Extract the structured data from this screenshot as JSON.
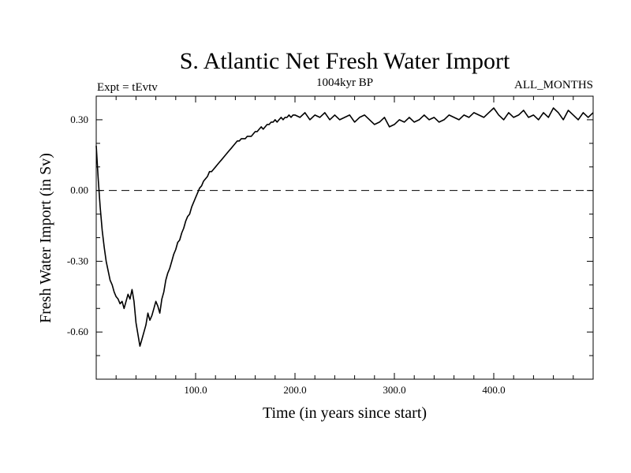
{
  "chart_data": {
    "type": "line",
    "title": "S. Atlantic Net Fresh Water Import",
    "subtitle_left": "Expt = tEvtv",
    "subtitle_center": "1004kyr BP",
    "subtitle_right": "ALL_MONTHS",
    "xlabel": "Time (in years since start)",
    "ylabel": "Fresh Water Import (in Sv)",
    "xlim": [
      0,
      500
    ],
    "ylim": [
      -0.8,
      0.4
    ],
    "x_ticks": [
      100,
      200,
      300,
      400
    ],
    "x_tick_labels": [
      "100.0",
      "200.0",
      "300.0",
      "400.0"
    ],
    "y_ticks": [
      0.3,
      0.0,
      -0.3,
      -0.6
    ],
    "y_tick_labels": [
      "0.30",
      "0.00",
      "-0.30",
      "-0.60"
    ],
    "reference_line": {
      "y": 0.0,
      "style": "dashed"
    },
    "series": [
      {
        "name": "Fresh Water Import",
        "x": [
          0,
          2,
          4,
          6,
          8,
          10,
          12,
          14,
          16,
          18,
          20,
          22,
          24,
          26,
          28,
          30,
          32,
          34,
          36,
          38,
          40,
          42,
          44,
          46,
          48,
          50,
          52,
          54,
          56,
          58,
          60,
          62,
          64,
          66,
          68,
          70,
          72,
          74,
          76,
          78,
          80,
          82,
          84,
          86,
          88,
          90,
          92,
          94,
          96,
          98,
          100,
          102,
          104,
          106,
          108,
          110,
          112,
          114,
          116,
          118,
          120,
          122,
          124,
          126,
          128,
          130,
          132,
          134,
          136,
          138,
          140,
          142,
          144,
          146,
          148,
          150,
          152,
          154,
          156,
          158,
          160,
          162,
          164,
          166,
          168,
          170,
          172,
          174,
          176,
          178,
          180,
          182,
          184,
          186,
          188,
          190,
          192,
          194,
          196,
          198,
          200,
          205,
          210,
          215,
          220,
          225,
          230,
          235,
          240,
          245,
          250,
          255,
          260,
          265,
          270,
          275,
          280,
          285,
          290,
          295,
          300,
          305,
          310,
          315,
          320,
          325,
          330,
          335,
          340,
          345,
          350,
          355,
          360,
          365,
          370,
          375,
          380,
          385,
          390,
          395,
          400,
          405,
          410,
          415,
          420,
          425,
          430,
          435,
          440,
          445,
          450,
          455,
          460,
          465,
          470,
          475,
          480,
          485,
          490,
          495,
          500
        ],
        "values": [
          0.19,
          0.05,
          -0.07,
          -0.17,
          -0.24,
          -0.3,
          -0.34,
          -0.38,
          -0.4,
          -0.43,
          -0.45,
          -0.46,
          -0.48,
          -0.47,
          -0.5,
          -0.47,
          -0.44,
          -0.46,
          -0.42,
          -0.47,
          -0.56,
          -0.61,
          -0.66,
          -0.63,
          -0.6,
          -0.57,
          -0.52,
          -0.55,
          -0.53,
          -0.5,
          -0.47,
          -0.49,
          -0.52,
          -0.46,
          -0.43,
          -0.38,
          -0.35,
          -0.33,
          -0.3,
          -0.27,
          -0.25,
          -0.22,
          -0.21,
          -0.18,
          -0.16,
          -0.13,
          -0.11,
          -0.1,
          -0.07,
          -0.05,
          -0.03,
          -0.01,
          0.01,
          0.02,
          0.04,
          0.05,
          0.06,
          0.08,
          0.08,
          0.09,
          0.1,
          0.11,
          0.12,
          0.13,
          0.14,
          0.15,
          0.16,
          0.17,
          0.18,
          0.19,
          0.2,
          0.21,
          0.21,
          0.22,
          0.22,
          0.22,
          0.23,
          0.23,
          0.23,
          0.24,
          0.25,
          0.25,
          0.26,
          0.27,
          0.26,
          0.27,
          0.28,
          0.28,
          0.29,
          0.29,
          0.3,
          0.29,
          0.3,
          0.31,
          0.3,
          0.31,
          0.31,
          0.32,
          0.31,
          0.32,
          0.32,
          0.31,
          0.33,
          0.3,
          0.32,
          0.31,
          0.33,
          0.3,
          0.32,
          0.3,
          0.31,
          0.32,
          0.29,
          0.31,
          0.32,
          0.3,
          0.28,
          0.29,
          0.31,
          0.27,
          0.28,
          0.3,
          0.29,
          0.31,
          0.29,
          0.3,
          0.32,
          0.3,
          0.31,
          0.29,
          0.3,
          0.32,
          0.31,
          0.3,
          0.32,
          0.31,
          0.33,
          0.32,
          0.31,
          0.33,
          0.35,
          0.32,
          0.3,
          0.33,
          0.31,
          0.32,
          0.34,
          0.31,
          0.32,
          0.3,
          0.33,
          0.31,
          0.35,
          0.33,
          0.3,
          0.34,
          0.32,
          0.3,
          0.33,
          0.31,
          0.33
        ]
      }
    ]
  }
}
